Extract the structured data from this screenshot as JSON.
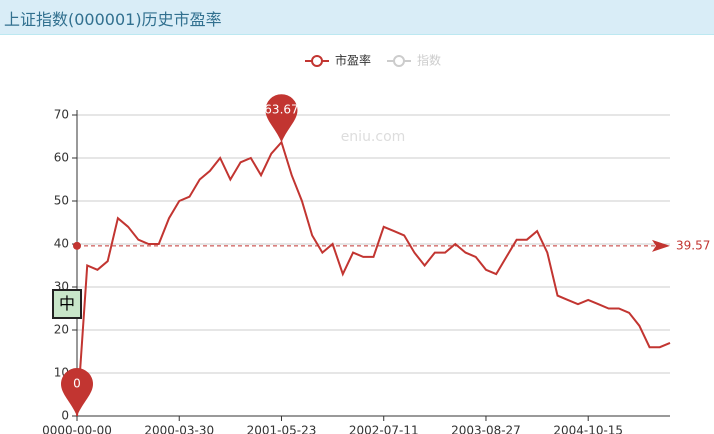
{
  "header": {
    "title": "上证指数(000001)历史市盈率"
  },
  "ime_indicator": "中",
  "chart_data": {
    "type": "line",
    "watermark": "eniu.com",
    "categories": [
      "0000-00-00",
      null,
      null,
      null,
      null,
      null,
      null,
      null,
      null,
      null,
      "2000-03-30",
      null,
      null,
      null,
      null,
      null,
      null,
      null,
      null,
      null,
      "2001-05-23",
      null,
      null,
      null,
      null,
      null,
      null,
      null,
      null,
      null,
      "2002-07-11",
      null,
      null,
      null,
      null,
      null,
      null,
      null,
      null,
      null,
      "2003-08-27",
      null,
      null,
      null,
      null,
      null,
      null,
      null,
      null,
      null,
      "2004-10-15",
      null,
      null,
      null,
      null,
      null,
      null,
      null,
      null
    ],
    "series": [
      {
        "name": "市盈率",
        "color": "#c23531",
        "values": [
          0,
          35,
          34,
          36,
          46,
          44,
          41,
          40,
          40,
          46,
          50,
          51,
          55,
          57,
          60,
          55,
          59,
          60,
          56,
          61,
          63.67,
          56,
          50,
          42,
          38,
          40,
          33,
          38,
          37,
          37,
          44,
          43,
          42,
          38,
          35,
          38,
          38,
          40,
          38,
          37,
          34,
          33,
          37,
          41,
          41,
          43,
          38,
          28,
          27,
          26,
          27,
          26,
          25,
          25,
          24,
          21,
          16,
          16,
          17
        ]
      }
    ],
    "inactive_legend": [
      {
        "name": "指数",
        "color": "#cccccc"
      }
    ],
    "max_index": 20,
    "min_index": 0,
    "average": 39.57,
    "ylim": [
      0,
      70
    ],
    "yticks": [
      0,
      10,
      20,
      30,
      40,
      50,
      60,
      70
    ],
    "grid": true
  }
}
